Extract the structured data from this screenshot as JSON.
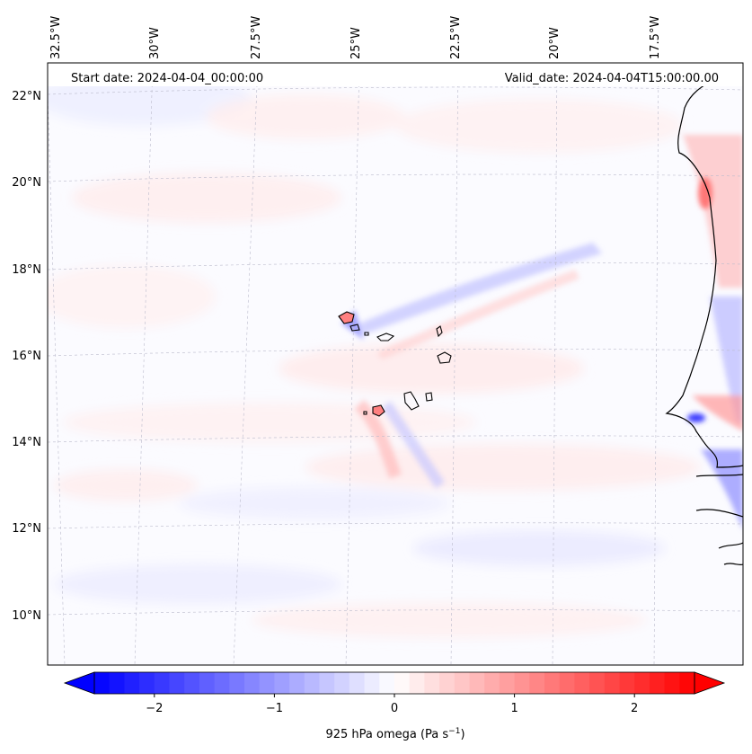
{
  "header": {
    "start_date": "Start date: 2024-04-04_00:00:00",
    "valid_date": "Valid_date: 2024-04-04T15:00:00.00"
  },
  "map": {
    "lon_labels": [
      "32.5°W",
      "30°W",
      "27.5°W",
      "25°W",
      "22.5°W",
      "20°W",
      "17.5°W"
    ],
    "lat_labels": [
      "22°N",
      "20°N",
      "18°N",
      "16°N",
      "14°N",
      "12°N",
      "10°N"
    ]
  },
  "colorbar": {
    "tick_labels": [
      "−2",
      "−1",
      "0",
      "1",
      "2"
    ],
    "tick_values": [
      -2,
      -1,
      0,
      1,
      2
    ],
    "vmin": -2.5,
    "vmax": 2.5,
    "label_main": "925 hPa omega (Pa s",
    "label_exp": "−1",
    "label_close": ")",
    "colors": {
      "negative": "#0000ff",
      "zero": "#ffffff",
      "positive": "#ff0000"
    }
  }
}
